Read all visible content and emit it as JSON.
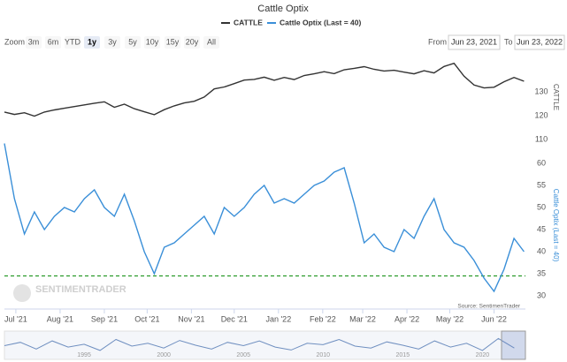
{
  "chart_data": {
    "type": "line",
    "title": "Cattle Optix",
    "x": [
      "2021-06-23",
      "2021-06-30",
      "2021-07-07",
      "2021-07-14",
      "2021-07-21",
      "2021-07-28",
      "2021-08-04",
      "2021-08-11",
      "2021-08-18",
      "2021-08-25",
      "2021-09-01",
      "2021-09-08",
      "2021-09-15",
      "2021-09-22",
      "2021-09-29",
      "2021-10-06",
      "2021-10-13",
      "2021-10-20",
      "2021-10-27",
      "2021-11-03",
      "2021-11-10",
      "2021-11-17",
      "2021-11-24",
      "2021-12-01",
      "2021-12-08",
      "2021-12-15",
      "2021-12-22",
      "2021-12-29",
      "2022-01-05",
      "2022-01-12",
      "2022-01-19",
      "2022-01-26",
      "2022-02-02",
      "2022-02-09",
      "2022-02-16",
      "2022-02-23",
      "2022-03-02",
      "2022-03-09",
      "2022-03-16",
      "2022-03-23",
      "2022-03-30",
      "2022-04-06",
      "2022-04-13",
      "2022-04-20",
      "2022-04-27",
      "2022-05-04",
      "2022-05-11",
      "2022-05-18",
      "2022-05-25",
      "2022-06-01",
      "2022-06-08",
      "2022-06-15",
      "2022-06-22"
    ],
    "xlim": [
      "2021-06-23",
      "2022-06-23"
    ],
    "xticks": [
      {
        "value": "2021-07-01",
        "label": "Jul '21"
      },
      {
        "value": "2021-08-01",
        "label": "Aug '21"
      },
      {
        "value": "2021-09-01",
        "label": "Sep '21"
      },
      {
        "value": "2021-10-01",
        "label": "Oct '21"
      },
      {
        "value": "2021-11-01",
        "label": "Nov '21"
      },
      {
        "value": "2021-12-01",
        "label": "Dec '21"
      },
      {
        "value": "2022-01-01",
        "label": "Jan '22"
      },
      {
        "value": "2022-02-01",
        "label": "Feb '22"
      },
      {
        "value": "2022-03-01",
        "label": "Mar '22"
      },
      {
        "value": "2022-04-01",
        "label": "Apr '22"
      },
      {
        "value": "2022-05-01",
        "label": "May '22"
      },
      {
        "value": "2022-06-01",
        "label": "Jun '22"
      }
    ],
    "series": [
      {
        "name": "CATTLE",
        "color": "#333333",
        "axis": "y",
        "values": [
          121.5,
          120.5,
          121.2,
          119.8,
          121.5,
          122.4,
          123.1,
          123.8,
          124.5,
          125.2,
          125.8,
          123.5,
          124.8,
          122.9,
          121.6,
          120.4,
          122.5,
          124.1,
          125.3,
          126.0,
          127.8,
          131.2,
          132.0,
          133.4,
          134.9,
          135.2,
          136.1,
          134.8,
          136.0,
          135.1,
          136.8,
          137.5,
          138.4,
          137.6,
          139.2,
          139.8,
          140.5,
          139.4,
          138.7,
          139.0,
          138.2,
          137.5,
          138.8,
          137.9,
          140.6,
          141.9,
          136.5,
          132.8,
          131.6,
          131.9,
          134.2,
          136.0,
          134.4
        ]
      },
      {
        "name": "Cattle Optix (Last = 40)",
        "color": "#3a8fd8",
        "axis": "y2",
        "values": [
          64.5,
          52,
          44,
          49,
          45,
          48,
          50,
          49,
          52,
          54,
          50,
          48,
          53,
          47,
          40,
          35,
          41,
          42,
          44,
          46,
          48,
          44,
          50,
          48,
          50,
          53,
          55,
          51,
          52,
          51,
          53,
          55,
          56,
          58,
          59,
          51,
          42,
          44,
          41,
          40,
          45,
          43,
          48,
          52,
          45,
          42,
          41,
          38,
          34,
          31,
          36,
          43,
          40
        ]
      }
    ],
    "ylabel": "CATTLE",
    "ylim": [
      110,
      145.5
    ],
    "yticks": [
      110,
      120,
      130
    ],
    "y2label": "Cattle Optix (Last = 40)",
    "y2lim": [
      28,
      65
    ],
    "y2ticks": [
      30,
      35,
      40,
      45,
      50,
      55,
      60
    ],
    "threshold": {
      "value": 34.5,
      "color": "#2a9a2a"
    },
    "grid": false,
    "source": "Source: SentimenTrader",
    "watermark": "SENTIMENTRADER",
    "zoom": {
      "label": "Zoom",
      "buttons": [
        "3m",
        "6m",
        "YTD",
        "1y",
        "3y",
        "5y",
        "10y",
        "15y",
        "20y",
        "All"
      ],
      "selected": "1y"
    },
    "range": {
      "from_label": "From",
      "from": "Jun 23, 2021",
      "to_label": "To",
      "to": "Jun 23, 2022"
    },
    "navigator": {
      "x": [
        1990,
        1991,
        1992,
        1993,
        1994,
        1995,
        1996,
        1997,
        1998,
        1999,
        2000,
        2001,
        2002,
        2003,
        2004,
        2005,
        2006,
        2007,
        2008,
        2009,
        2010,
        2011,
        2012,
        2013,
        2014,
        2015,
        2016,
        2017,
        2018,
        2019,
        2020,
        2021,
        2022
      ],
      "values": [
        45,
        52,
        38,
        55,
        42,
        48,
        35,
        58,
        44,
        50,
        40,
        56,
        46,
        38,
        52,
        45,
        55,
        42,
        36,
        50,
        47,
        58,
        44,
        40,
        53,
        46,
        38,
        55,
        42,
        50,
        35,
        60,
        40
      ],
      "xlim": [
        1990,
        2022.7
      ],
      "ylim": [
        20,
        70
      ],
      "xticks": [
        1995,
        2000,
        2005,
        2010,
        2015,
        2020
      ]
    }
  }
}
